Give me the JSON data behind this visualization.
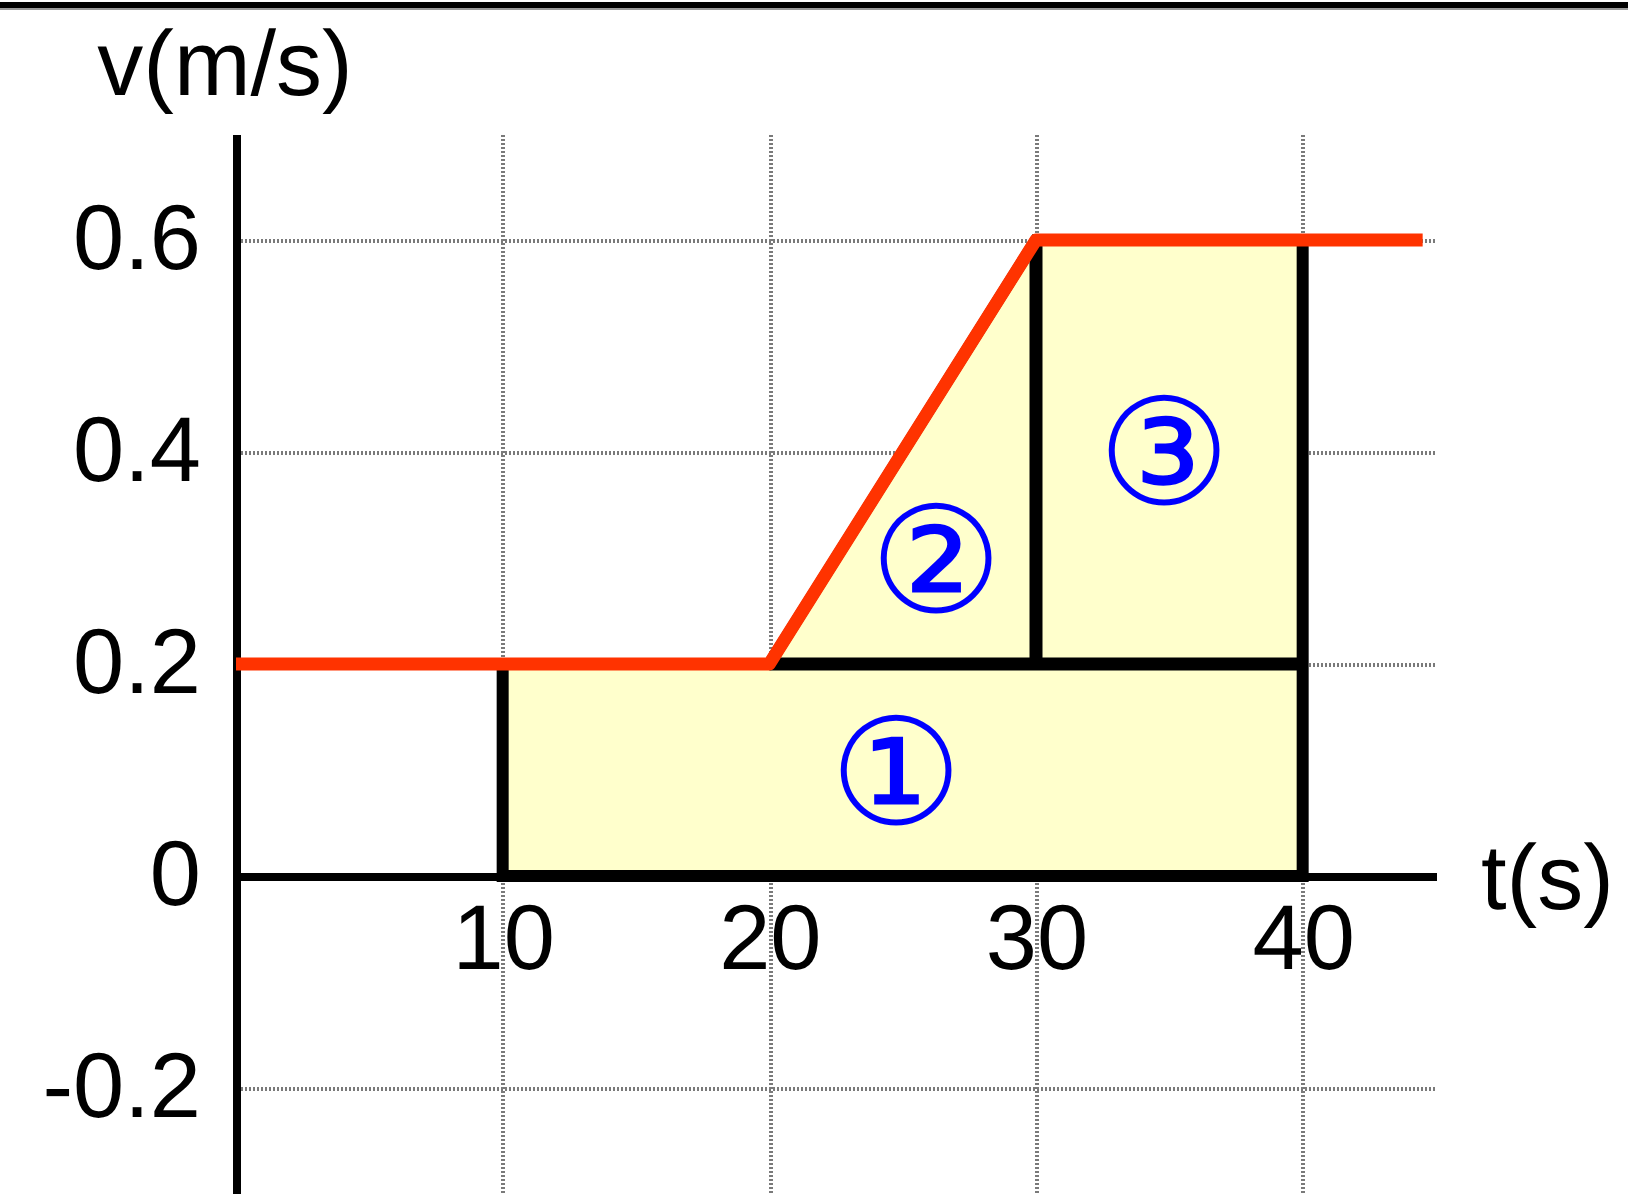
{
  "chart_data": {
    "type": "line",
    "xlabel": "t(s)",
    "ylabel": "v(m/s)",
    "xlim": [
      0,
      45
    ],
    "ylim": [
      -0.3,
      0.7
    ],
    "xticks": [
      10,
      20,
      30,
      40
    ],
    "yticks": [
      -0.2,
      0,
      0.2,
      0.4,
      0.6
    ],
    "grid": true,
    "series": [
      {
        "type": "area",
        "color": "#ffffcc",
        "x": [
          10,
          20,
          30,
          40
        ],
        "values": [
          0.2,
          0.2,
          0.6,
          0.6
        ]
      },
      {
        "color": "#000000",
        "x": [
          20,
          40
        ],
        "values": [
          0.2,
          0.2
        ]
      },
      {
        "color": "#000000",
        "x": [
          30,
          30
        ],
        "values": [
          0.2,
          0.6
        ]
      },
      {
        "color": "#ff3300",
        "x": [
          0,
          20,
          30,
          44.5
        ],
        "values": [
          0.2,
          0.2,
          0.6,
          0.6
        ]
      }
    ],
    "annotations": [
      "①",
      "②",
      "③"
    ]
  }
}
